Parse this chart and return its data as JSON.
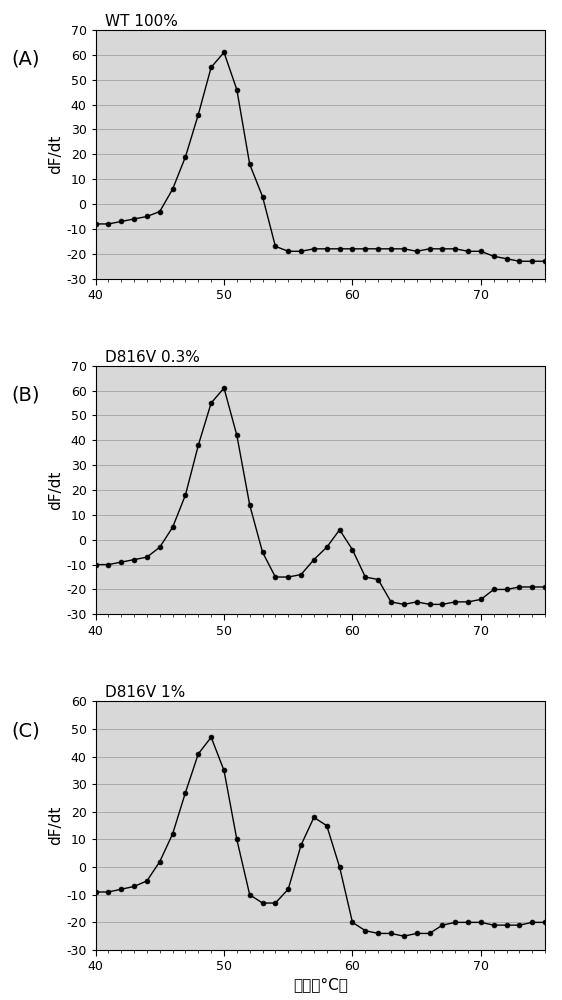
{
  "panels": [
    {
      "label": "(A)",
      "title": "WT 100%",
      "ylim": [
        -30,
        70
      ],
      "yticks": [
        70,
        60,
        50,
        40,
        30,
        20,
        10,
        0,
        -10,
        -20,
        -30
      ],
      "x": [
        40,
        41,
        42,
        43,
        44,
        45,
        46,
        47,
        48,
        49,
        50,
        51,
        52,
        53,
        54,
        55,
        56,
        57,
        58,
        59,
        60,
        61,
        62,
        63,
        64,
        65,
        66,
        67,
        68,
        69,
        70,
        71,
        72,
        73,
        74,
        75
      ],
      "y": [
        -8,
        -8,
        -7,
        -6,
        -5,
        -3,
        6,
        19,
        36,
        55,
        61,
        46,
        16,
        3,
        -17,
        -19,
        -19,
        -18,
        -18,
        -18,
        -18,
        -18,
        -18,
        -18,
        -18,
        -19,
        -18,
        -18,
        -18,
        -19,
        -19,
        -21,
        -22,
        -23,
        -23,
        -23
      ]
    },
    {
      "label": "(B)",
      "title": "D816V 0.3%",
      "ylim": [
        -30,
        70
      ],
      "yticks": [
        70,
        60,
        50,
        40,
        30,
        20,
        10,
        0,
        -10,
        -20,
        -30
      ],
      "x": [
        40,
        41,
        42,
        43,
        44,
        45,
        46,
        47,
        48,
        49,
        50,
        51,
        52,
        53,
        54,
        55,
        56,
        57,
        58,
        59,
        60,
        61,
        62,
        63,
        64,
        65,
        66,
        67,
        68,
        69,
        70,
        71,
        72,
        73,
        74,
        75
      ],
      "y": [
        -10,
        -10,
        -9,
        -8,
        -7,
        -3,
        5,
        18,
        38,
        55,
        61,
        42,
        14,
        -5,
        -15,
        -15,
        -14,
        -8,
        -3,
        4,
        -4,
        -15,
        -16,
        -25,
        -26,
        -25,
        -26,
        -26,
        -25,
        -25,
        -24,
        -20,
        -20,
        -19,
        -19,
        -19
      ]
    },
    {
      "label": "(C)",
      "title": "D816V 1%",
      "ylim": [
        -30,
        60
      ],
      "yticks": [
        60,
        50,
        40,
        30,
        20,
        10,
        0,
        -10,
        -20,
        -30
      ],
      "x": [
        40,
        41,
        42,
        43,
        44,
        45,
        46,
        47,
        48,
        49,
        50,
        51,
        52,
        53,
        54,
        55,
        56,
        57,
        58,
        59,
        60,
        61,
        62,
        63,
        64,
        65,
        66,
        67,
        68,
        69,
        70,
        71,
        72,
        73,
        74,
        75
      ],
      "y": [
        -9,
        -9,
        -8,
        -7,
        -5,
        2,
        12,
        27,
        41,
        47,
        35,
        10,
        -10,
        -13,
        -13,
        -8,
        8,
        18,
        15,
        0,
        -20,
        -23,
        -24,
        -24,
        -25,
        -24,
        -24,
        -21,
        -20,
        -20,
        -20,
        -21,
        -21,
        -21,
        -20,
        -20
      ]
    }
  ],
  "xlabel": "温度（°C）",
  "ylabel": "dF/dt",
  "xlim": [
    40,
    75
  ],
  "xticks": [
    40,
    50,
    60,
    70
  ],
  "bg_color": "#d8d8d8",
  "line_color": "#000000",
  "marker_color": "#000000",
  "title_fontsize": 11,
  "label_fontsize": 11,
  "tick_fontsize": 9,
  "panel_label_fontsize": 14
}
